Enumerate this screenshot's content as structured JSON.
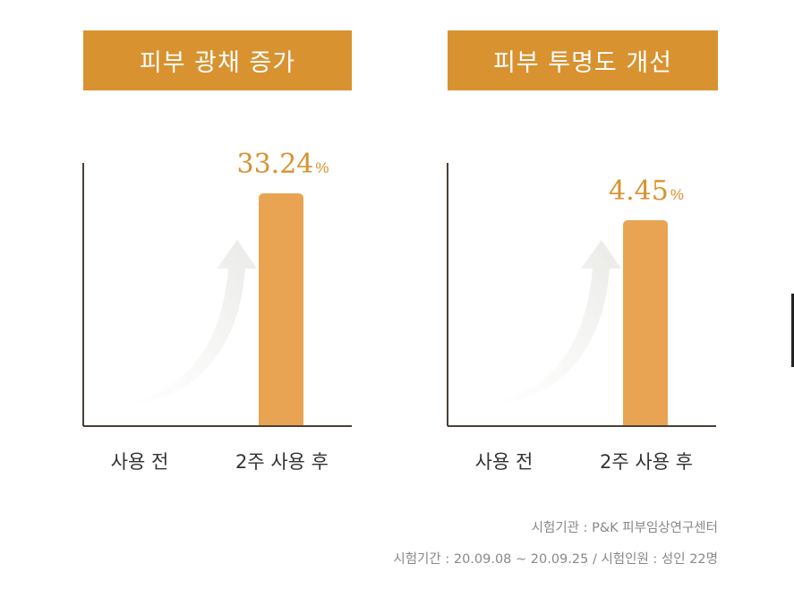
{
  "chart_data": [
    {
      "type": "bar",
      "title": "피부 광채 증가",
      "categories": [
        "사용 전",
        "2주 사용 후"
      ],
      "values": [
        null,
        33.24
      ],
      "value_labels": [
        "",
        "33.24"
      ],
      "unit": "%",
      "colors": {
        "bar": "#e8a452",
        "title_bg": "#d8922f",
        "value_text": "#d8922f",
        "axis": "#4a4035"
      },
      "grid": false
    },
    {
      "type": "bar",
      "title": "피부 투명도 개선",
      "categories": [
        "사용 전",
        "2주 사용 후"
      ],
      "values": [
        null,
        4.45
      ],
      "value_labels": [
        "",
        "4.45"
      ],
      "unit": "%",
      "colors": {
        "bar": "#e8a452",
        "title_bg": "#d8922f",
        "value_text": "#d8922f",
        "axis": "#4a4035"
      },
      "grid": false
    }
  ],
  "footer": {
    "line1": "시험기관 : P&K 피부임상연구센터",
    "line2": "시험기간 : 20.09.08 ~ 20.09.25 / 시험인원 : 성인 22명"
  }
}
